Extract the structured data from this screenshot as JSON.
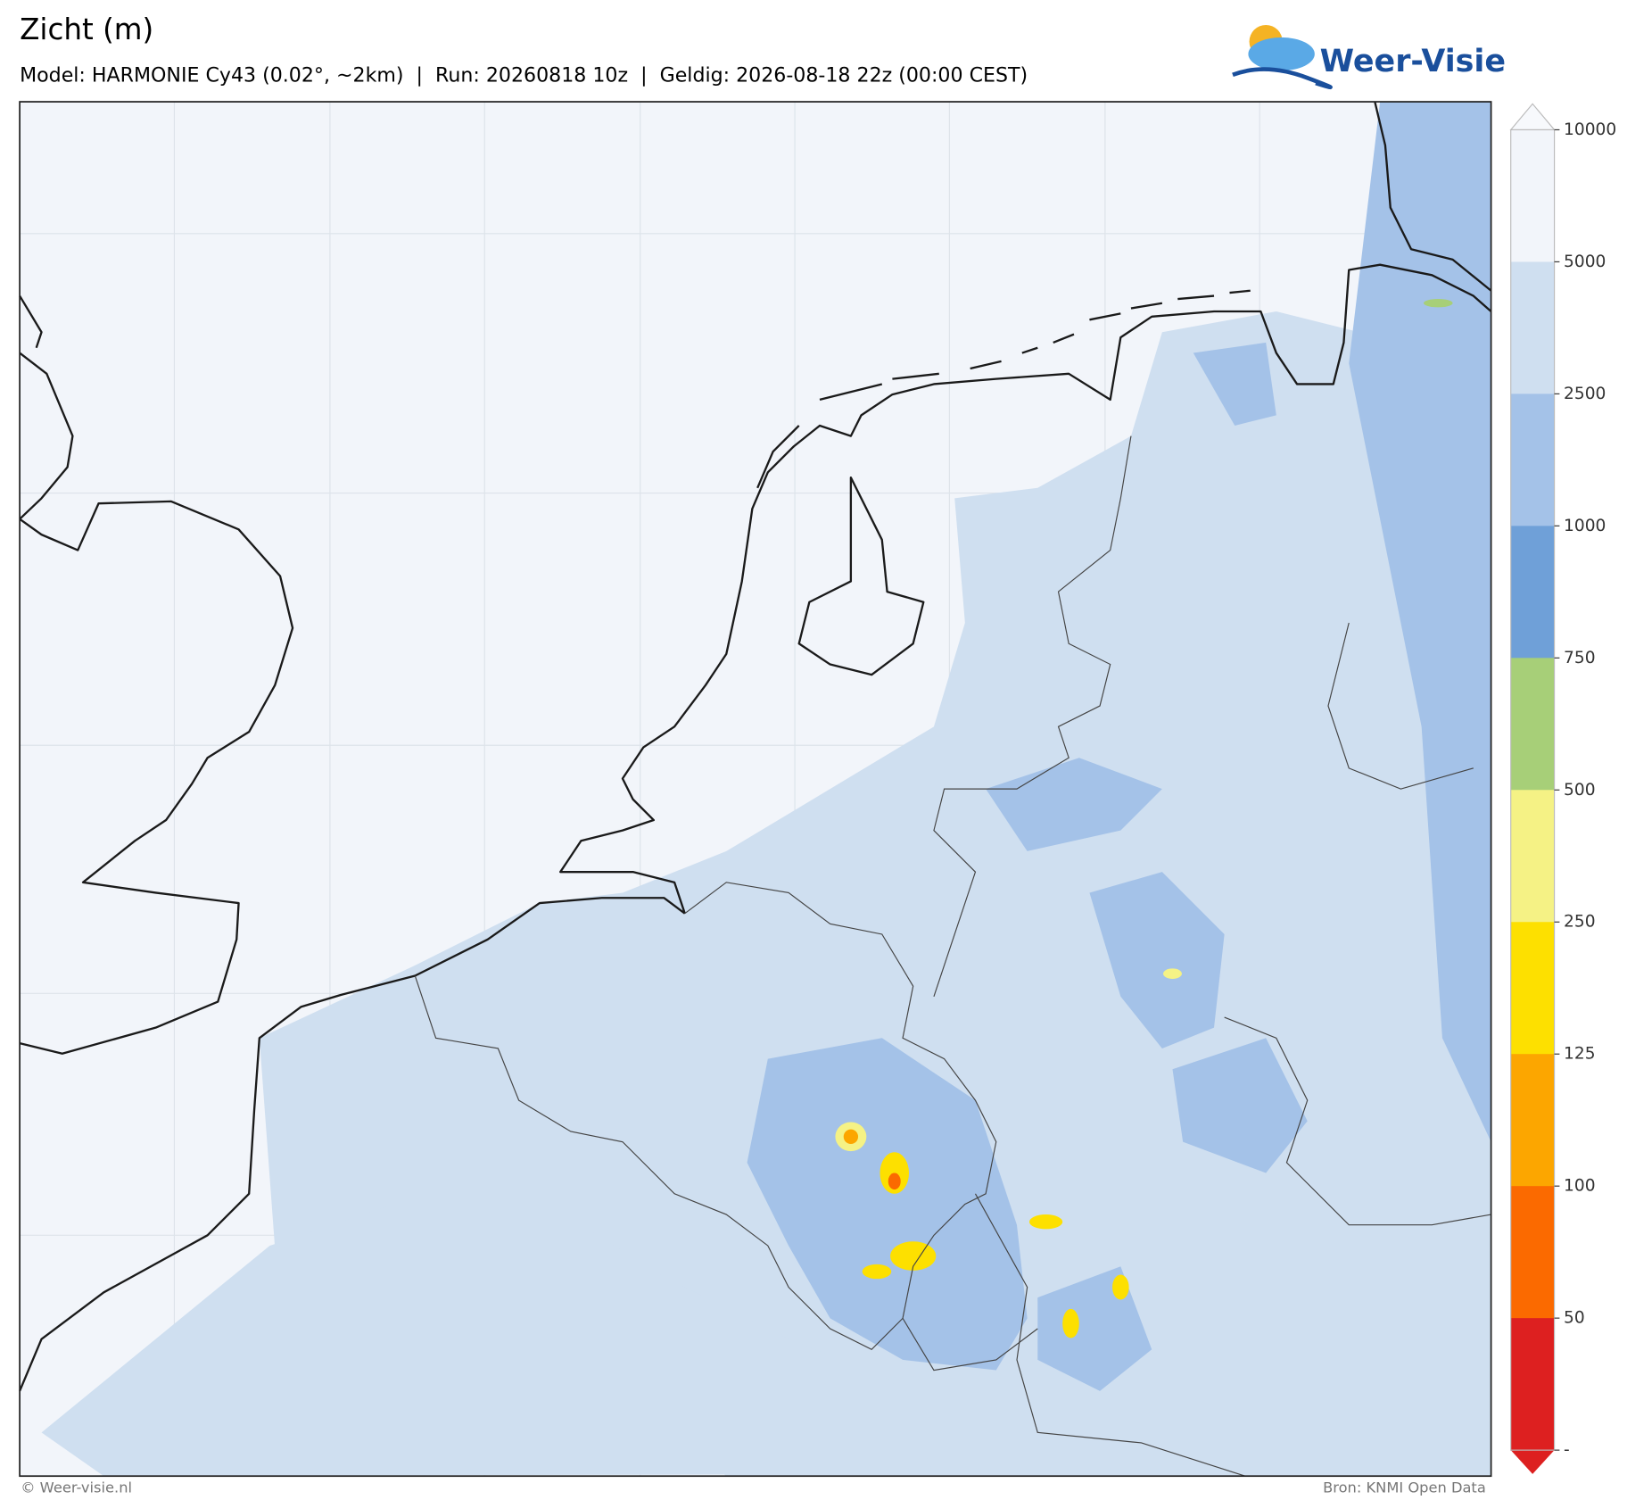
{
  "header": {
    "title": "Zicht (m)",
    "subtitle": "Model: HARMONIE Cy43 (0.02°, ~2km)  |  Run: 20260818 10z  |  Geldig: 2026-08-18 22z (00:00 CEST)",
    "logo": "Weer-Visie"
  },
  "colorbar": {
    "ticks": [
      10000,
      5000,
      2500,
      1000,
      750,
      500,
      250,
      125,
      100,
      50,
      {
        "value": 0,
        "label": "-"
      }
    ],
    "colors": [
      "#f2f5fa",
      "#cfdff0",
      "#a4c2e8",
      "#6fa0d8",
      "#a7cf78",
      "#f5f285",
      "#fde000",
      "#fca600",
      "#fb6a00",
      "#dd2020"
    ],
    "extend_colors": [
      "#f7f9fc",
      "#dd2020"
    ]
  },
  "footer": {
    "left": "© Weer-visie.nl",
    "right": "Bron: KNMI Open Data"
  }
}
